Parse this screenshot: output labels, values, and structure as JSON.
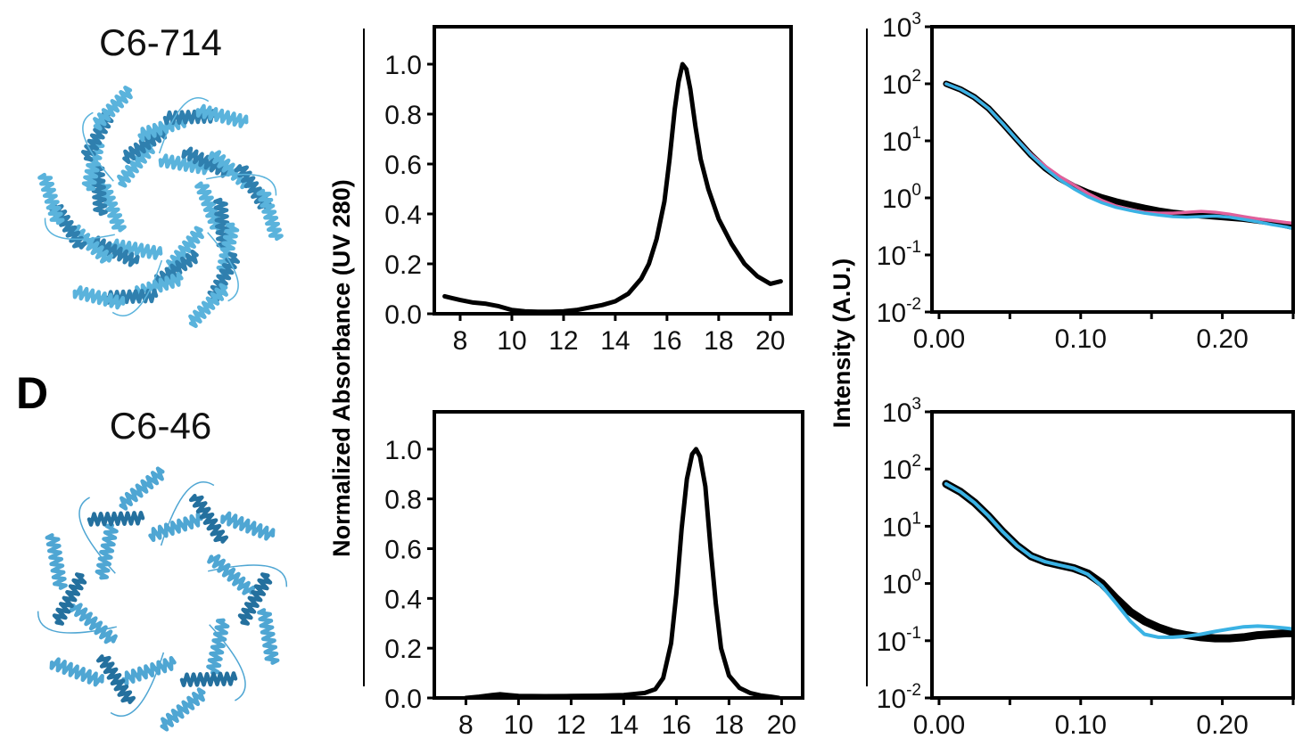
{
  "panel_letter": "D",
  "structures": [
    {
      "title": "C6-714",
      "style": "helical-repeat",
      "color": "#5ab3dc",
      "dark": "#2f7fae"
    },
    {
      "title": "C6-46",
      "style": "helical-bundle",
      "color": "#4fa6d3",
      "dark": "#24709e"
    }
  ],
  "sec_ylabel": "Normalized Absorbance (UV 280)",
  "saxs_ylabel": "Intensity (A.U.)",
  "chart_data": [
    {
      "id": "sec-c6-714",
      "type": "line",
      "xlim": [
        7,
        20.8
      ],
      "ylim": [
        0,
        1.15
      ],
      "x_ticks": [
        8,
        10,
        12,
        14,
        16,
        18,
        20
      ],
      "y_ticks": [
        0.0,
        0.2,
        0.4,
        0.6,
        0.8,
        1.0
      ],
      "series": [
        {
          "color": "#000000",
          "x": [
            7.4,
            8.0,
            8.5,
            9.0,
            9.5,
            10.0,
            10.5,
            11.0,
            11.5,
            12.0,
            12.5,
            13.0,
            13.5,
            14.0,
            14.5,
            15.0,
            15.3,
            15.6,
            15.9,
            16.1,
            16.3,
            16.45,
            16.6,
            16.75,
            16.9,
            17.1,
            17.3,
            17.6,
            18.0,
            18.5,
            19.0,
            19.5,
            20.0,
            20.4
          ],
          "y": [
            0.07,
            0.055,
            0.045,
            0.04,
            0.03,
            0.015,
            0.01,
            0.008,
            0.008,
            0.01,
            0.015,
            0.025,
            0.035,
            0.05,
            0.08,
            0.14,
            0.2,
            0.3,
            0.45,
            0.62,
            0.82,
            0.93,
            1.0,
            0.98,
            0.9,
            0.75,
            0.62,
            0.5,
            0.38,
            0.28,
            0.2,
            0.15,
            0.12,
            0.13
          ]
        }
      ]
    },
    {
      "id": "sec-c6-46",
      "type": "line",
      "xlim": [
        6.8,
        20.8
      ],
      "ylim": [
        0,
        1.15
      ],
      "x_ticks": [
        8,
        10,
        12,
        14,
        16,
        18,
        20
      ],
      "y_ticks": [
        0.0,
        0.2,
        0.4,
        0.6,
        0.8,
        1.0
      ],
      "series": [
        {
          "color": "#000000",
          "x": [
            8.0,
            8.5,
            9.0,
            9.3,
            9.6,
            10.0,
            11.0,
            12.0,
            13.0,
            14.0,
            14.8,
            15.2,
            15.5,
            15.8,
            16.0,
            16.2,
            16.4,
            16.6,
            16.75,
            16.9,
            17.1,
            17.3,
            17.5,
            17.7,
            18.0,
            18.4,
            18.8,
            19.2,
            19.6,
            19.9
          ],
          "y": [
            0.0,
            0.005,
            0.012,
            0.015,
            0.012,
            0.008,
            0.007,
            0.008,
            0.009,
            0.012,
            0.02,
            0.035,
            0.08,
            0.22,
            0.42,
            0.68,
            0.88,
            0.98,
            1.0,
            0.97,
            0.85,
            0.6,
            0.38,
            0.2,
            0.09,
            0.04,
            0.02,
            0.01,
            0.005,
            0.0
          ]
        }
      ]
    },
    {
      "id": "saxs-c6-714",
      "type": "line",
      "y_scale": "log",
      "xlim": [
        -0.005,
        0.25
      ],
      "ylim": [
        0.01,
        1000
      ],
      "x_ticks": [
        0.0,
        0.1,
        0.2
      ],
      "x_tick_labels": [
        "0.00",
        "0.10",
        "0.20"
      ],
      "y_ticks": [
        0.01,
        0.1,
        1,
        10,
        100,
        1000
      ],
      "y_tick_labels": [
        {
          "base": "10",
          "exp": "-2"
        },
        {
          "base": "10",
          "exp": "-1"
        },
        {
          "base": "10",
          "exp": "0"
        },
        {
          "base": "10",
          "exp": "1"
        },
        {
          "base": "10",
          "exp": "2"
        },
        {
          "base": "10",
          "exp": "3"
        }
      ],
      "series": [
        {
          "color": "#000000",
          "width": 7,
          "x": [
            0.005,
            0.015,
            0.025,
            0.035,
            0.045,
            0.055,
            0.065,
            0.075,
            0.085,
            0.095,
            0.105,
            0.115,
            0.125,
            0.135,
            0.145,
            0.155,
            0.165,
            0.175,
            0.185,
            0.195,
            0.205,
            0.215,
            0.225,
            0.235,
            0.245,
            0.25
          ],
          "y": [
            100,
            80,
            58,
            37,
            20,
            10.5,
            5.6,
            3.3,
            2.2,
            1.6,
            1.25,
            1.02,
            0.87,
            0.76,
            0.67,
            0.6,
            0.55,
            0.52,
            0.49,
            0.47,
            0.45,
            0.43,
            0.4,
            0.37,
            0.33,
            0.31
          ]
        },
        {
          "color": "#e0609b",
          "width": 3.5,
          "x": [
            0.005,
            0.015,
            0.025,
            0.035,
            0.045,
            0.055,
            0.065,
            0.075,
            0.085,
            0.095,
            0.105,
            0.115,
            0.125,
            0.135,
            0.145,
            0.155,
            0.165,
            0.175,
            0.185,
            0.195,
            0.205,
            0.215,
            0.225,
            0.235,
            0.245,
            0.25
          ],
          "y": [
            100,
            80,
            58,
            37,
            20,
            10.5,
            5.8,
            3.6,
            2.4,
            1.7,
            1.2,
            0.9,
            0.72,
            0.62,
            0.56,
            0.54,
            0.54,
            0.56,
            0.58,
            0.56,
            0.52,
            0.47,
            0.43,
            0.4,
            0.37,
            0.36
          ]
        },
        {
          "color": "#3ab2e4",
          "width": 3.5,
          "x": [
            0.005,
            0.015,
            0.025,
            0.035,
            0.045,
            0.055,
            0.065,
            0.075,
            0.085,
            0.095,
            0.105,
            0.115,
            0.125,
            0.135,
            0.145,
            0.155,
            0.165,
            0.175,
            0.185,
            0.195,
            0.205,
            0.215,
            0.225,
            0.235,
            0.245,
            0.25
          ],
          "y": [
            100,
            80,
            58,
            37,
            20,
            10.5,
            5.6,
            3.3,
            2.1,
            1.45,
            1.05,
            0.82,
            0.68,
            0.6,
            0.54,
            0.5,
            0.47,
            0.46,
            0.47,
            0.48,
            0.46,
            0.42,
            0.38,
            0.34,
            0.31,
            0.29
          ]
        }
      ]
    },
    {
      "id": "saxs-c6-46",
      "type": "line",
      "y_scale": "log",
      "xlim": [
        -0.005,
        0.25
      ],
      "ylim": [
        0.01,
        1000
      ],
      "x_ticks": [
        0.0,
        0.1,
        0.2
      ],
      "x_tick_labels": [
        "0.00",
        "0.10",
        "0.20"
      ],
      "y_ticks": [
        0.01,
        0.1,
        1,
        10,
        100,
        1000
      ],
      "y_tick_labels": [
        {
          "base": "10",
          "exp": "-2"
        },
        {
          "base": "10",
          "exp": "-1"
        },
        {
          "base": "10",
          "exp": "0"
        },
        {
          "base": "10",
          "exp": "1"
        },
        {
          "base": "10",
          "exp": "2"
        },
        {
          "base": "10",
          "exp": "3"
        }
      ],
      "series": [
        {
          "color": "#000000",
          "width": 9,
          "x": [
            0.005,
            0.015,
            0.025,
            0.035,
            0.045,
            0.055,
            0.065,
            0.075,
            0.085,
            0.095,
            0.105,
            0.115,
            0.125,
            0.135,
            0.145,
            0.155,
            0.165,
            0.175,
            0.185,
            0.195,
            0.205,
            0.215,
            0.225,
            0.235,
            0.245,
            0.25
          ],
          "y": [
            55,
            40,
            26,
            15,
            8,
            4.6,
            3.0,
            2.4,
            2.1,
            1.85,
            1.5,
            1.0,
            0.55,
            0.32,
            0.22,
            0.17,
            0.14,
            0.125,
            0.115,
            0.11,
            0.11,
            0.115,
            0.125,
            0.13,
            0.135,
            0.135
          ]
        },
        {
          "color": "#3ab2e4",
          "width": 4,
          "x": [
            0.005,
            0.015,
            0.025,
            0.035,
            0.045,
            0.055,
            0.065,
            0.075,
            0.085,
            0.095,
            0.105,
            0.115,
            0.125,
            0.135,
            0.145,
            0.155,
            0.165,
            0.175,
            0.185,
            0.195,
            0.205,
            0.215,
            0.225,
            0.235,
            0.245,
            0.25
          ],
          "y": [
            55,
            40,
            26,
            15,
            8,
            4.6,
            3.0,
            2.4,
            2.1,
            1.85,
            1.45,
            0.9,
            0.45,
            0.22,
            0.13,
            0.115,
            0.115,
            0.12,
            0.13,
            0.145,
            0.16,
            0.175,
            0.18,
            0.175,
            0.165,
            0.16
          ]
        }
      ]
    }
  ]
}
